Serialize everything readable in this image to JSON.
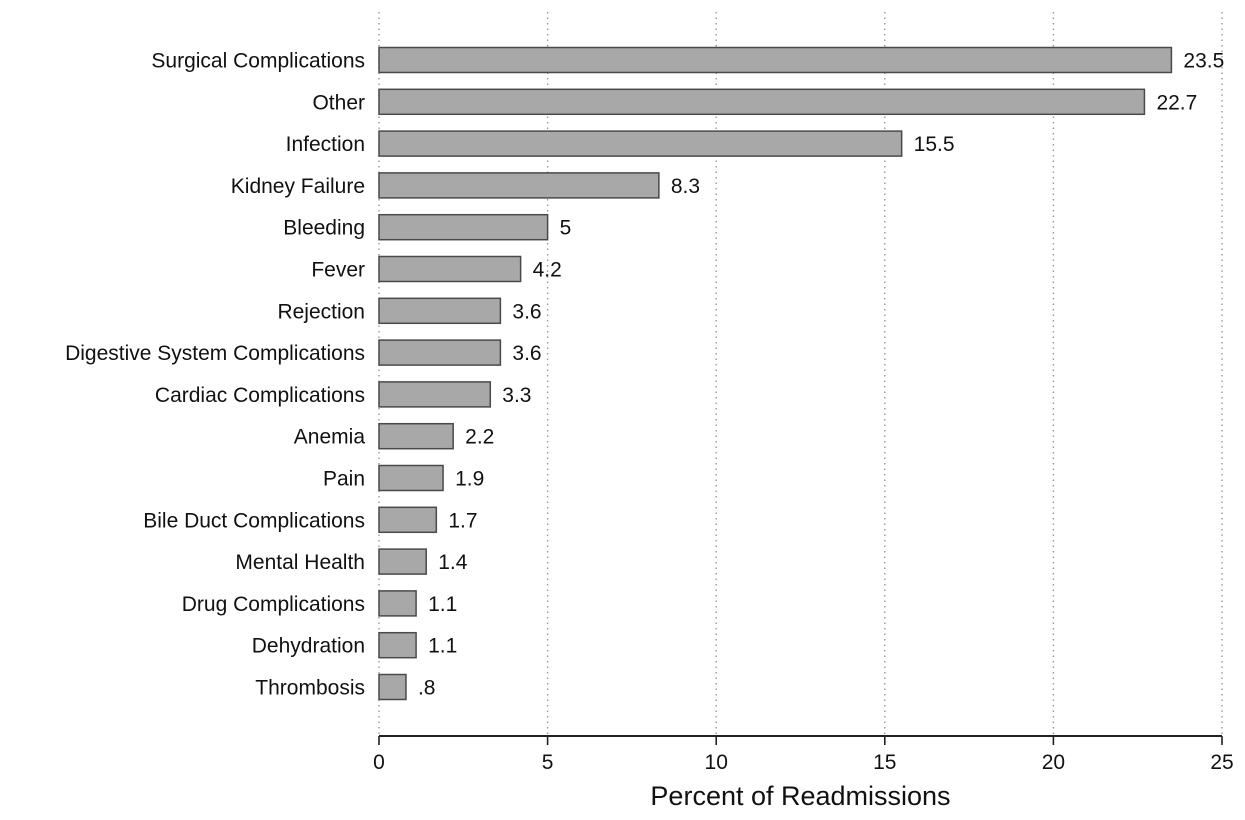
{
  "chart_data": {
    "type": "bar",
    "orientation": "horizontal",
    "categories": [
      "Surgical Complications",
      "Other",
      "Infection",
      "Kidney Failure",
      "Bleeding",
      "Fever",
      "Rejection",
      "Digestive System Complications",
      "Cardiac Complications",
      "Anemia",
      "Pain",
      "Bile Duct Complications",
      "Mental Health",
      "Drug Complications",
      "Dehydration",
      "Thrombosis"
    ],
    "values": [
      23.5,
      22.7,
      15.5,
      8.3,
      5,
      4.2,
      3.6,
      3.6,
      3.3,
      2.2,
      1.9,
      1.7,
      1.4,
      1.1,
      1.1,
      0.8
    ],
    "value_labels": [
      "23.5",
      "22.7",
      "15.5",
      "8.3",
      "5",
      "4.2",
      "3.6",
      "3.6",
      "3.3",
      "2.2",
      "1.9",
      "1.7",
      "1.4",
      "1.1",
      "1.1",
      ".8"
    ],
    "xlabel": "Percent of Readmissions",
    "ylabel": "",
    "xlim": [
      0,
      25
    ],
    "xticks": [
      0,
      5,
      10,
      15,
      20,
      25
    ],
    "xtick_labels": [
      "0",
      "5",
      "10",
      "15",
      "20",
      "25"
    ],
    "grid": "vertical dotted",
    "bar_color": "#a8a8a8",
    "bar_edge_color": "#4a4a4a"
  }
}
